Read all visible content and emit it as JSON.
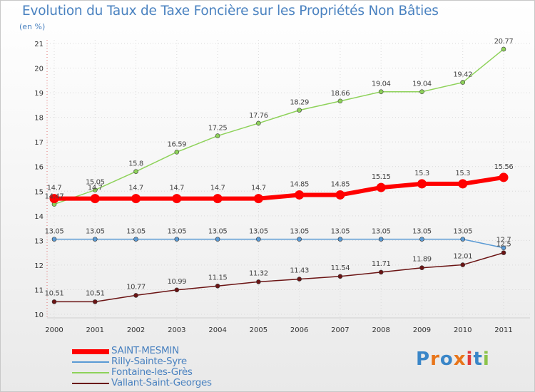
{
  "chart_data": {
    "type": "line",
    "title": "Evolution du Taux de Taxe Foncière sur les Propriétés Non Bâties",
    "unit_label": "(en %)",
    "x": [
      "2000",
      "2001",
      "2002",
      "2003",
      "2004",
      "2005",
      "2006",
      "2007",
      "2008",
      "2009",
      "2010",
      "2011"
    ],
    "ylim": [
      10,
      21
    ],
    "yticks": [
      10,
      11,
      12,
      13,
      14,
      15,
      16,
      17,
      18,
      19,
      20,
      21
    ],
    "grid": true,
    "legend_position": "bottom-left",
    "series": [
      {
        "name": "SAINT-MESMIN",
        "color": "#ff0000",
        "values": [
          14.7,
          14.7,
          14.7,
          14.7,
          14.7,
          14.7,
          14.85,
          14.85,
          15.15,
          15.3,
          15.3,
          15.56
        ],
        "labels": [
          "14.7",
          "14.7",
          "14.7",
          "14.7",
          "14.7",
          "14.7",
          "14.85",
          "14.85",
          "15.15",
          "15.3",
          "15.3",
          "15.56"
        ]
      },
      {
        "name": "Rilly-Sainte-Syre",
        "color": "#5a9ad4",
        "values": [
          13.05,
          13.05,
          13.05,
          13.05,
          13.05,
          13.05,
          13.05,
          13.05,
          13.05,
          13.05,
          13.05,
          12.7
        ],
        "labels": [
          "13.05",
          "13.05",
          "13.05",
          "13.05",
          "13.05",
          "13.05",
          "13.05",
          "13.05",
          "13.05",
          "13.05",
          "13.05",
          "12.7"
        ]
      },
      {
        "name": "Fontaine-les-Grès",
        "color": "#8ed25a",
        "values": [
          14.47,
          15.05,
          15.8,
          16.59,
          17.25,
          17.76,
          18.29,
          18.66,
          19.04,
          19.04,
          19.42,
          20.77
        ],
        "labels": [
          "14.47",
          "15.05",
          "15.8",
          "16.59",
          "17.25",
          "17.76",
          "18.29",
          "18.66",
          "19.04",
          "19.04",
          "19.42",
          "20.77"
        ]
      },
      {
        "name": "Vallant-Saint-Georges",
        "color": "#6b1414",
        "values": [
          10.51,
          10.51,
          10.77,
          10.99,
          11.15,
          11.32,
          11.43,
          11.54,
          11.71,
          11.89,
          12.01,
          12.5
        ],
        "labels": [
          "10.51",
          "10.51",
          "10.77",
          "10.99",
          "11.15",
          "11.32",
          "11.43",
          "11.54",
          "11.71",
          "11.89",
          "12.01",
          "12.5"
        ]
      }
    ]
  },
  "brand": {
    "letters": [
      "P",
      "r",
      "o",
      "x",
      "i",
      "t",
      "i"
    ],
    "colors": [
      "#3a86c8",
      "#e8751a",
      "#3a86c8",
      "#e8751a",
      "#e23a3a",
      "#3a86c8",
      "#8bc34a"
    ]
  }
}
